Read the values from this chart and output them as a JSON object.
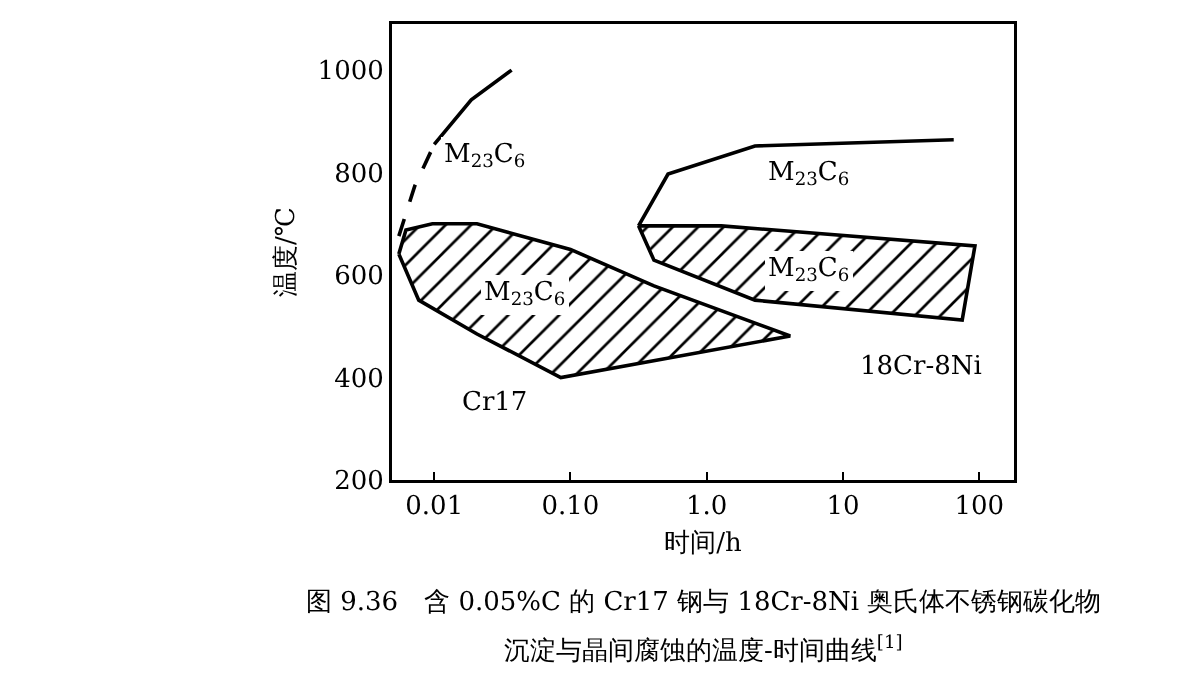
{
  "chart_data": {
    "type": "line",
    "xlabel": "时间/h",
    "ylabel": "温度/℃",
    "log": "x",
    "grid": false,
    "marker": "none",
    "xlim": [
      0.0049,
      180
    ],
    "ylim": [
      200,
      1090
    ],
    "xticks": [
      0.01,
      {
        "value": 0.1,
        "label": "0.10"
      },
      {
        "value": 1,
        "label": "1.0"
      },
      10,
      100
    ],
    "yticks": [
      200,
      400,
      600,
      800,
      1000
    ],
    "series": [
      {
        "color": "#000000",
        "line_style": "solid",
        "x": [
          0.01,
          0.0187,
          0.037
        ],
        "values": [
          855,
          942,
          1000
        ]
      },
      {
        "color": "#000000",
        "line_style": "dashed",
        "x": [
          0.0055,
          0.0072,
          0.01
        ],
        "values": [
          676,
          774,
          855
        ]
      },
      {
        "color": "#000000",
        "line_style": "solid",
        "x": [
          0.316,
          0.52,
          2.26,
          65
        ],
        "values": [
          696,
          797,
          852,
          864
        ]
      },
      {
        "type": "area",
        "color": "#000000",
        "x": [
          0.0055,
          0.0062,
          0.0097,
          0.0206,
          0.1,
          0.41,
          4.1,
          0.085,
          0.0206,
          0.0077,
          0.0055
        ],
        "values": [
          641,
          688,
          700,
          700,
          650,
          579,
          481,
          400,
          485,
          551,
          641
        ]
      },
      {
        "type": "area",
        "color": "#000000",
        "x": [
          0.316,
          1.28,
          93,
          75,
          2.26,
          0.41,
          0.316
        ],
        "values": [
          696,
          696,
          657,
          512,
          551,
          629,
          696
        ]
      }
    ],
    "annotations": [
      "M$_{23}$C$_{6}$",
      "M$_{23}$C$_{6}$",
      "M$_{23}$C$_{6}$",
      "M$_{23}$C$_{6}$",
      "Cr17",
      "18Cr-8Ni",
      "图 9.36　含 0.05%C 的 Cr17 钢与 18Cr-8Ni 奥氏体不锈钢碳化物",
      "沉淀与晶间腐蚀的温度-时间曲线$^{[1]}$"
    ]
  }
}
